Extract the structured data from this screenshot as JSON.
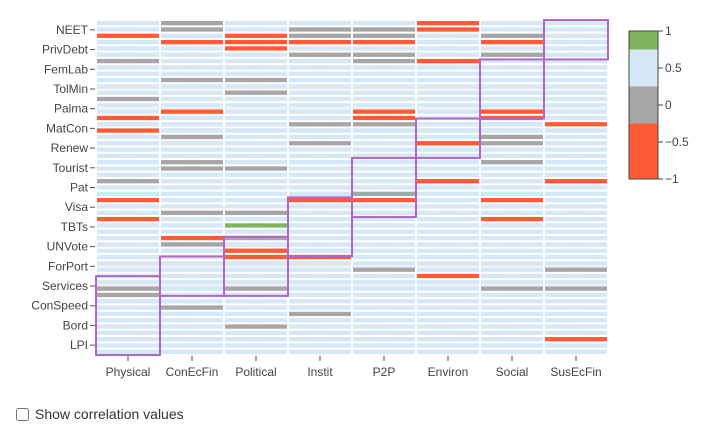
{
  "chart_data": {
    "type": "heatmap",
    "x_categories": [
      "Physical",
      "ConEcFin",
      "Political",
      "Instit",
      "P2P",
      "Environ",
      "Social",
      "SusEcFin"
    ],
    "y_labels_top_to_bottom": [
      "NEET",
      "PrivDebt",
      "FemLab",
      "TolMin",
      "Palma",
      "MatCon",
      "Renew",
      "Tourist",
      "Pat",
      "Visa",
      "TBTs",
      "UNVote",
      "ForPort",
      "Services",
      "ConSpeed",
      "Bord",
      "LPI"
    ],
    "colorscale": {
      "ticks": [
        1,
        0.5,
        0,
        -0.5,
        -1
      ],
      "tick_labels": [
        "1",
        "0.5",
        "0",
        "−0.5",
        "−1"
      ],
      "bands": [
        {
          "from": 0.75,
          "to": 1.0,
          "color": "#7fb35c"
        },
        {
          "from": 0.25,
          "to": 0.75,
          "color": "#d6e8f5"
        },
        {
          "from": -0.25,
          "to": 0.25,
          "color": "#a6a6a8"
        },
        {
          "from": -1.0,
          "to": -0.25,
          "color": "#ff5a36"
        }
      ]
    },
    "matrix_note": "values: 0.5 light blue, 0 grey, -0.7 red-orange, 0.9 green; rows = 53 indicator sub-rows top to bottom",
    "matrix": [
      [
        0.5,
        0,
        0.5,
        0.5,
        0.5,
        -0.7,
        0.5,
        0.5
      ],
      [
        0.5,
        0,
        0.5,
        0,
        0,
        -0.7,
        0.5,
        0.5
      ],
      [
        -0.7,
        0.5,
        -0.7,
        0,
        0,
        0.5,
        0,
        0.5
      ],
      [
        0.5,
        -0.7,
        -0.7,
        -0.7,
        -0.7,
        0.5,
        -0.7,
        0.5
      ],
      [
        0.5,
        0.5,
        -0.7,
        0.5,
        0.5,
        0.5,
        0.5,
        0.5
      ],
      [
        0.5,
        0.5,
        0.5,
        0,
        0,
        0.5,
        0,
        0.5
      ],
      [
        0,
        0.5,
        0.5,
        0.5,
        0,
        -0.7,
        0.5,
        0.5
      ],
      [
        0.5,
        0.5,
        0.5,
        0.5,
        0.5,
        0.5,
        0.5,
        0.5
      ],
      [
        0.5,
        0.5,
        0.5,
        0.5,
        0.5,
        0.5,
        0.5,
        0.5
      ],
      [
        0.5,
        0,
        0,
        0.5,
        0.5,
        0.5,
        0.5,
        0.5
      ],
      [
        0.5,
        0.5,
        0.5,
        0.5,
        0.5,
        0.5,
        0.5,
        0.5
      ],
      [
        0.5,
        0.5,
        0,
        0.5,
        0.5,
        0.5,
        0.5,
        0.5
      ],
      [
        0,
        0.5,
        0.5,
        0.5,
        0.5,
        0.5,
        0.5,
        0.5
      ],
      [
        0.5,
        0.5,
        0.5,
        0.5,
        0.5,
        0.5,
        0.5,
        0.5
      ],
      [
        0.5,
        -0.7,
        0.5,
        0.5,
        -0.7,
        0.5,
        -0.7,
        0.5
      ],
      [
        -0.7,
        0.5,
        0.5,
        0.5,
        -0.7,
        0.5,
        -0.7,
        0.5
      ],
      [
        0.5,
        0.5,
        0.5,
        0,
        0,
        0.5,
        0.5,
        -0.7
      ],
      [
        -0.7,
        0.5,
        0.5,
        0.5,
        0.5,
        0.5,
        0.5,
        0.5
      ],
      [
        0.5,
        0,
        0.5,
        0.5,
        0.5,
        0.5,
        0,
        0.5
      ],
      [
        0.5,
        0.5,
        0.5,
        0,
        0.5,
        -0.7,
        0,
        0.5
      ],
      [
        0.5,
        0.5,
        0.5,
        0.5,
        0.5,
        0.5,
        0.5,
        0.5
      ],
      [
        0.5,
        0.5,
        0.5,
        0.5,
        0.5,
        0.5,
        0.5,
        0.5
      ],
      [
        0.5,
        0,
        0.5,
        0.5,
        0.5,
        0.5,
        0,
        0.5
      ],
      [
        0.5,
        0,
        0,
        0.5,
        0.5,
        0.5,
        0.5,
        0.5
      ],
      [
        0.5,
        0.5,
        0.5,
        0.5,
        0.5,
        0.5,
        0.5,
        0.5
      ],
      [
        0,
        0.5,
        0.5,
        0.5,
        0.5,
        -0.7,
        0.5,
        -0.7
      ],
      [
        0.5,
        0.5,
        0.5,
        0.5,
        0.5,
        0.5,
        0.5,
        0.5
      ],
      [
        0.5,
        0.5,
        0.5,
        0.5,
        0,
        0.5,
        0.5,
        0.5
      ],
      [
        -0.7,
        0.5,
        0.5,
        -0.7,
        -0.7,
        0.5,
        -0.7,
        0.5
      ],
      [
        0.5,
        0.5,
        0.5,
        0.5,
        0.5,
        0.5,
        0.5,
        0.5
      ],
      [
        0.5,
        0,
        0,
        0.5,
        0.5,
        0.5,
        0.5,
        0.5
      ],
      [
        -0.7,
        0.5,
        0.5,
        0.5,
        0.5,
        0.5,
        -0.7,
        0.5
      ],
      [
        0.5,
        0.5,
        0.9,
        0.5,
        0.5,
        0.5,
        0.5,
        0.5
      ],
      [
        0.5,
        0.5,
        0.5,
        0.5,
        0.5,
        0.5,
        0.5,
        0.5
      ],
      [
        0.5,
        -0.7,
        0,
        0.5,
        0.5,
        0.5,
        0.5,
        0.5
      ],
      [
        0.5,
        0,
        0.5,
        0.5,
        0.5,
        0.5,
        0.5,
        0.5
      ],
      [
        0.5,
        0.5,
        -0.7,
        0.5,
        0.5,
        0.5,
        0.5,
        0.5
      ],
      [
        0.5,
        0.5,
        -0.7,
        -0.7,
        0.5,
        0.5,
        0.5,
        0.5
      ],
      [
        0.5,
        0.5,
        0.5,
        0.5,
        0.5,
        0.5,
        0.5,
        0.5
      ],
      [
        0.5,
        0.5,
        0.5,
        0.5,
        0,
        0.5,
        0.5,
        0
      ],
      [
        0.5,
        0.5,
        0.5,
        0.5,
        0.5,
        -0.7,
        0.5,
        0.5
      ],
      [
        0.5,
        0.5,
        0.5,
        0.5,
        0.5,
        0.5,
        0.5,
        0.5
      ],
      [
        0,
        0.5,
        0,
        0.5,
        0.5,
        0.5,
        0,
        0
      ],
      [
        0,
        0.5,
        0.5,
        0.5,
        0.5,
        0.5,
        0.5,
        0.5
      ],
      [
        0.5,
        0.5,
        0.5,
        0.5,
        0.5,
        0.5,
        0.5,
        0.5
      ],
      [
        0.5,
        0,
        0.5,
        0.5,
        0.5,
        0.5,
        0.5,
        0.5
      ],
      [
        0.5,
        0.5,
        0.5,
        0,
        0.5,
        0.5,
        0.5,
        0.5
      ],
      [
        0.5,
        0.5,
        0.5,
        0.5,
        0.5,
        0.5,
        0.5,
        0.5
      ],
      [
        0.5,
        0.5,
        0,
        0.5,
        0.5,
        0.5,
        0.5,
        0.5
      ],
      [
        0.5,
        0.5,
        0.5,
        0.5,
        0.5,
        0.5,
        0.5,
        0.5
      ],
      [
        0.5,
        0.5,
        0.5,
        0.5,
        0.5,
        0.5,
        0.5,
        -0.7
      ],
      [
        0.5,
        0.5,
        0.5,
        0.5,
        0.5,
        0.5,
        0.5,
        0.5
      ],
      [
        0.5,
        0.5,
        0.5,
        0.5,
        0.5,
        0.5,
        0.5,
        0.5
      ]
    ],
    "highlight_blocks": [
      {
        "column": "Physical",
        "rows_from": "Services",
        "rows_to": "LPI"
      },
      {
        "column": "ConEcFin",
        "rows_from": "ForPort",
        "rows_to": "Services"
      },
      {
        "column": "Political",
        "rows_from": "UNVote",
        "rows_to": "Services"
      },
      {
        "column": "Instit",
        "rows_from": "Visa",
        "rows_to": "UNVote"
      },
      {
        "column": "P2P",
        "rows_from": "Tourist",
        "rows_to": "Visa"
      },
      {
        "column": "Environ",
        "rows_from": "MatCon",
        "rows_to": "Renew"
      },
      {
        "column": "Social",
        "rows_from": "FemLab",
        "rows_to": "Palma"
      },
      {
        "column": "SusEcFin",
        "rows_from": "NEET",
        "rows_to": "PrivDebt"
      }
    ],
    "highlight_color": "#b565c7",
    "grid": true
  },
  "controls": {
    "show_values_label": "Show correlation values",
    "show_values_checked": false
  }
}
